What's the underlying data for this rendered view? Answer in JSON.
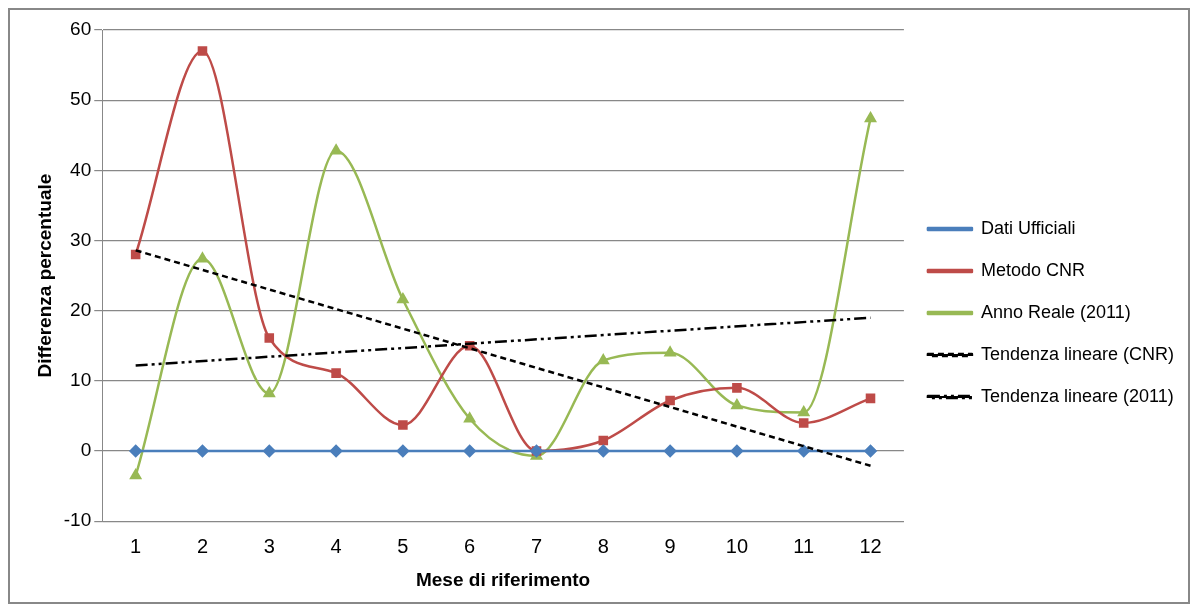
{
  "chart_data": {
    "type": "line",
    "xlabel": "Mese di riferimento",
    "ylabel": "Differenza percentuale",
    "x": [
      1,
      2,
      3,
      4,
      5,
      6,
      7,
      8,
      9,
      10,
      11,
      12
    ],
    "xlim": [
      0.5,
      12.5
    ],
    "xticks": [
      1,
      2,
      3,
      4,
      5,
      6,
      7,
      8,
      9,
      10,
      11,
      12
    ],
    "ylim": [
      -10,
      60
    ],
    "yticks": [
      -10,
      0,
      10,
      20,
      30,
      40,
      50,
      60
    ],
    "grid": "y",
    "legend": "right",
    "series": [
      {
        "name": "Dati Ufficiali",
        "color": "#4a7ebb",
        "marker": "diamond",
        "line_style": "solid",
        "values": [
          0,
          0,
          0,
          0,
          0,
          0,
          0,
          0,
          0,
          0,
          0,
          0
        ]
      },
      {
        "name": "Metodo CNR",
        "color": "#be4b48",
        "marker": "square",
        "line_style": "solid",
        "values": [
          28,
          57,
          16.1,
          11.1,
          3.7,
          15,
          0,
          1.5,
          7.2,
          9,
          4,
          7.5
        ]
      },
      {
        "name": "Anno Reale (2011)",
        "color": "#98b954",
        "marker": "triangle",
        "line_style": "solid",
        "values": [
          -3.5,
          27.4,
          8.2,
          42.8,
          21.6,
          4.6,
          -0.7,
          12.9,
          14,
          6.5,
          5.5,
          47.4
        ]
      },
      {
        "name": "Tendenza lineare (CNR)",
        "color": "#000000",
        "marker": "none",
        "line_style": "dashed",
        "values": [
          28.6,
          null,
          null,
          null,
          null,
          null,
          null,
          null,
          null,
          null,
          null,
          -2.1
        ]
      },
      {
        "name": "Tendenza lineare (2011)",
        "color": "#000000",
        "marker": "none",
        "line_style": "dotted",
        "values": [
          12.2,
          null,
          null,
          null,
          null,
          null,
          null,
          null,
          null,
          null,
          null,
          19
        ]
      }
    ]
  }
}
